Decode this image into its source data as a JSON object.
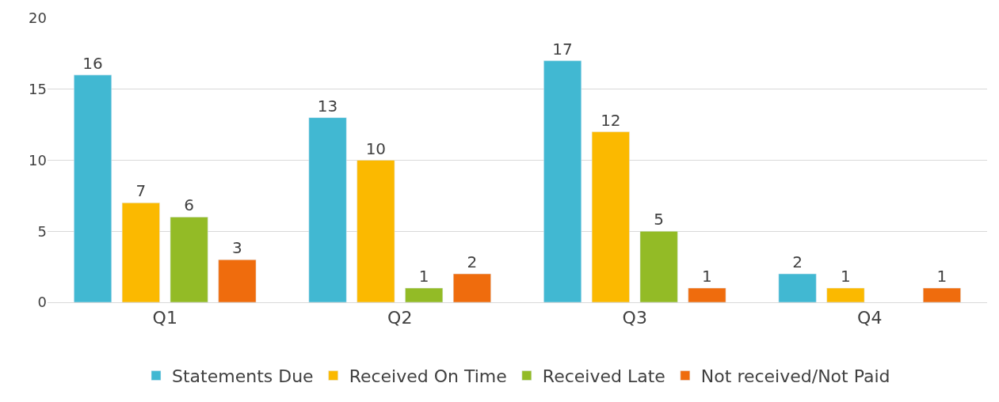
{
  "chart_data": {
    "type": "bar",
    "categories": [
      "Q1",
      "Q2",
      "Q3",
      "Q4"
    ],
    "series": [
      {
        "name": "Statements Due",
        "color": "#41b8d2",
        "values": [
          16,
          13,
          17,
          2
        ]
      },
      {
        "name": "Received On Time",
        "color": "#fbb900",
        "values": [
          7,
          10,
          12,
          1
        ]
      },
      {
        "name": "Received Late",
        "color": "#93bb26",
        "values": [
          6,
          1,
          5,
          null
        ]
      },
      {
        "name": "Not received/Not Paid",
        "color": "#ef6c0d",
        "values": [
          3,
          2,
          1,
          1
        ]
      }
    ],
    "ylim": [
      0,
      20
    ],
    "yticks": [
      0,
      5,
      10,
      15,
      20
    ],
    "grid": "y",
    "legend": "bottom",
    "data_labels": true
  }
}
